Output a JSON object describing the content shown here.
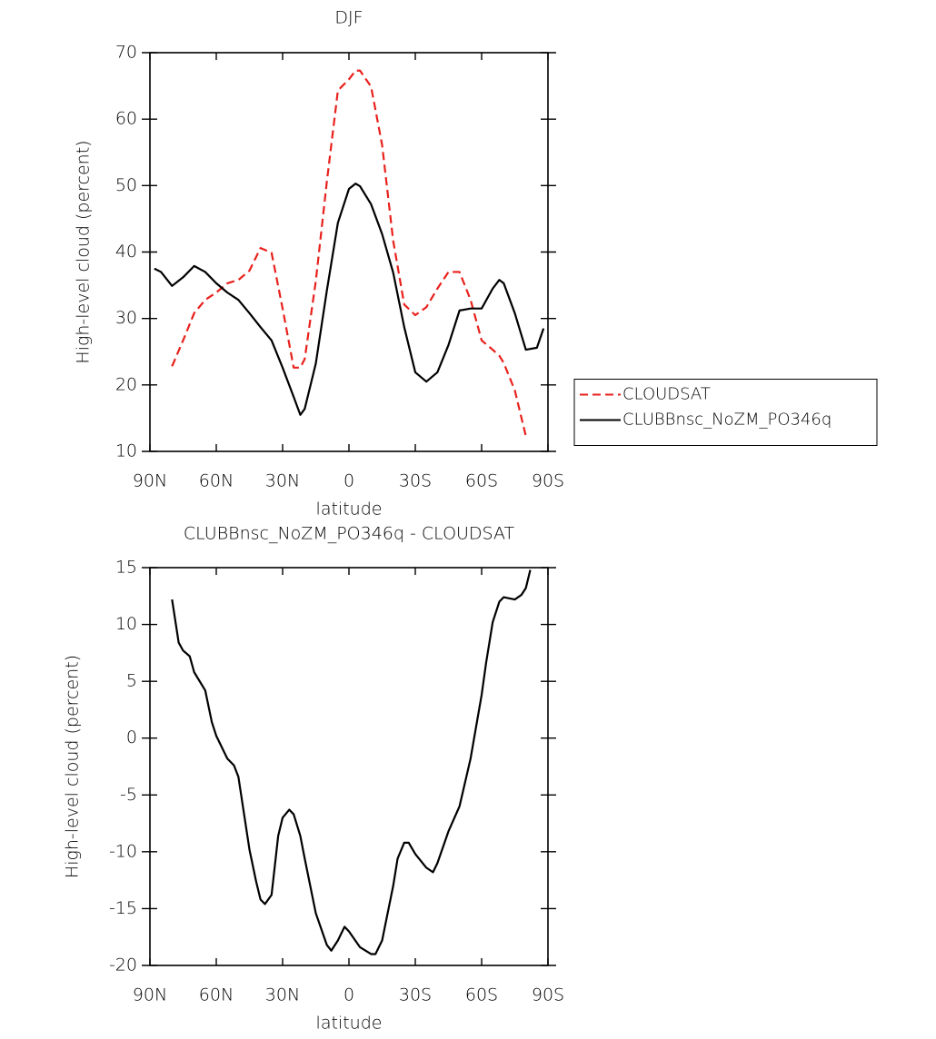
{
  "chart_data": [
    {
      "type": "line",
      "title": "DJF",
      "xlabel": "latitude",
      "ylabel": "High-level cloud (percent)",
      "x": [
        88,
        85,
        80,
        75,
        70,
        65,
        60,
        55,
        50,
        45,
        40,
        35,
        30,
        25,
        22,
        20,
        15,
        10,
        5,
        0,
        -3,
        -5,
        -10,
        -15,
        -20,
        -25,
        -30,
        -35,
        -40,
        -45,
        -50,
        -55,
        -60,
        -65,
        -68,
        -70,
        -75,
        -80,
        -85,
        -88
      ],
      "series": [
        {
          "name": "CLOUDSAT",
          "color": "#e8211c",
          "style": "dashed",
          "values": [
            null,
            null,
            22.8,
            26.7,
            30.8,
            32.8,
            33.9,
            35.3,
            35.8,
            37.2,
            40.6,
            39.9,
            31.5,
            22.6,
            22.6,
            23.9,
            35.6,
            50.6,
            64.3,
            66.0,
            67.3,
            67.3,
            64.9,
            56.1,
            41.7,
            32.1,
            30.5,
            31.7,
            34.5,
            37.0,
            37.0,
            32.8,
            26.7,
            25.3,
            24.4,
            23.3,
            19.2,
            12.3,
            null,
            null
          ]
        },
        {
          "name": "CLUBBnsc_NoZM_PO346q",
          "color": "#000000",
          "style": "solid",
          "values": [
            37.5,
            37.0,
            34.9,
            36.2,
            37.9,
            37.0,
            35.3,
            33.9,
            32.8,
            30.8,
            28.7,
            26.7,
            22.6,
            18.2,
            15.5,
            16.4,
            23.2,
            34.2,
            44.4,
            49.5,
            50.3,
            49.9,
            47.2,
            42.7,
            36.9,
            28.7,
            21.9,
            20.5,
            21.9,
            26.0,
            31.2,
            31.5,
            31.5,
            34.5,
            35.8,
            35.3,
            30.8,
            25.3,
            25.6,
            28.5
          ]
        }
      ],
      "xlim": [
        90,
        -90
      ],
      "xticks": [
        {
          "value": 90,
          "label": "90N"
        },
        {
          "value": 60,
          "label": "60N"
        },
        {
          "value": 30,
          "label": "30N"
        },
        0,
        {
          "value": -30,
          "label": "30S"
        },
        {
          "value": -60,
          "label": "60S"
        },
        {
          "value": -90,
          "label": "90S"
        }
      ],
      "ylim": [
        10,
        70
      ],
      "yticks": [
        10,
        20,
        30,
        40,
        50,
        60,
        70
      ],
      "legend": "right"
    },
    {
      "type": "line",
      "title": "CLUBBnsc_NoZM_PO346q - CLOUDSAT",
      "xlabel": "latitude",
      "ylabel": "High-level cloud (percent)",
      "x": [
        80,
        77,
        75,
        72,
        70,
        65,
        62,
        60,
        55,
        52,
        50,
        45,
        42,
        40,
        38,
        35,
        32,
        30,
        27,
        25,
        22,
        20,
        15,
        10,
        8,
        5,
        2,
        0,
        -5,
        -10,
        -12,
        -15,
        -20,
        -22,
        -25,
        -27,
        -30,
        -35,
        -38,
        -40,
        -45,
        -50,
        -55,
        -60,
        -62,
        -65,
        -68,
        -70,
        -75,
        -78,
        -80,
        -82
      ],
      "series": [
        {
          "name": "CLUBBnsc_NoZM_PO346q - CLOUDSAT",
          "color": "#000000",
          "style": "solid",
          "values": [
            12.2,
            8.4,
            7.7,
            7.2,
            5.8,
            4.2,
            1.4,
            0.2,
            -1.8,
            -2.4,
            -3.4,
            -9.8,
            -12.6,
            -14.2,
            -14.6,
            -13.8,
            -8.6,
            -7.0,
            -6.3,
            -6.7,
            -8.6,
            -10.6,
            -15.4,
            -18.2,
            -18.7,
            -17.8,
            -16.6,
            -17.0,
            -18.4,
            -19.0,
            -19.0,
            -17.8,
            -13.0,
            -10.6,
            -9.2,
            -9.2,
            -10.2,
            -11.4,
            -11.8,
            -11.0,
            -8.2,
            -6.0,
            -1.8,
            3.8,
            6.6,
            10.2,
            12.0,
            12.4,
            12.2,
            12.6,
            13.2,
            14.8
          ]
        }
      ],
      "xlim": [
        90,
        -90
      ],
      "xticks": [
        {
          "value": 90,
          "label": "90N"
        },
        {
          "value": 60,
          "label": "60N"
        },
        {
          "value": 30,
          "label": "30N"
        },
        0,
        {
          "value": -30,
          "label": "30S"
        },
        {
          "value": -60,
          "label": "60S"
        },
        {
          "value": -90,
          "label": "90S"
        }
      ],
      "ylim": [
        -20,
        15
      ],
      "yticks": [
        -20,
        -15,
        -10,
        -5,
        0,
        5,
        10,
        15
      ]
    }
  ]
}
